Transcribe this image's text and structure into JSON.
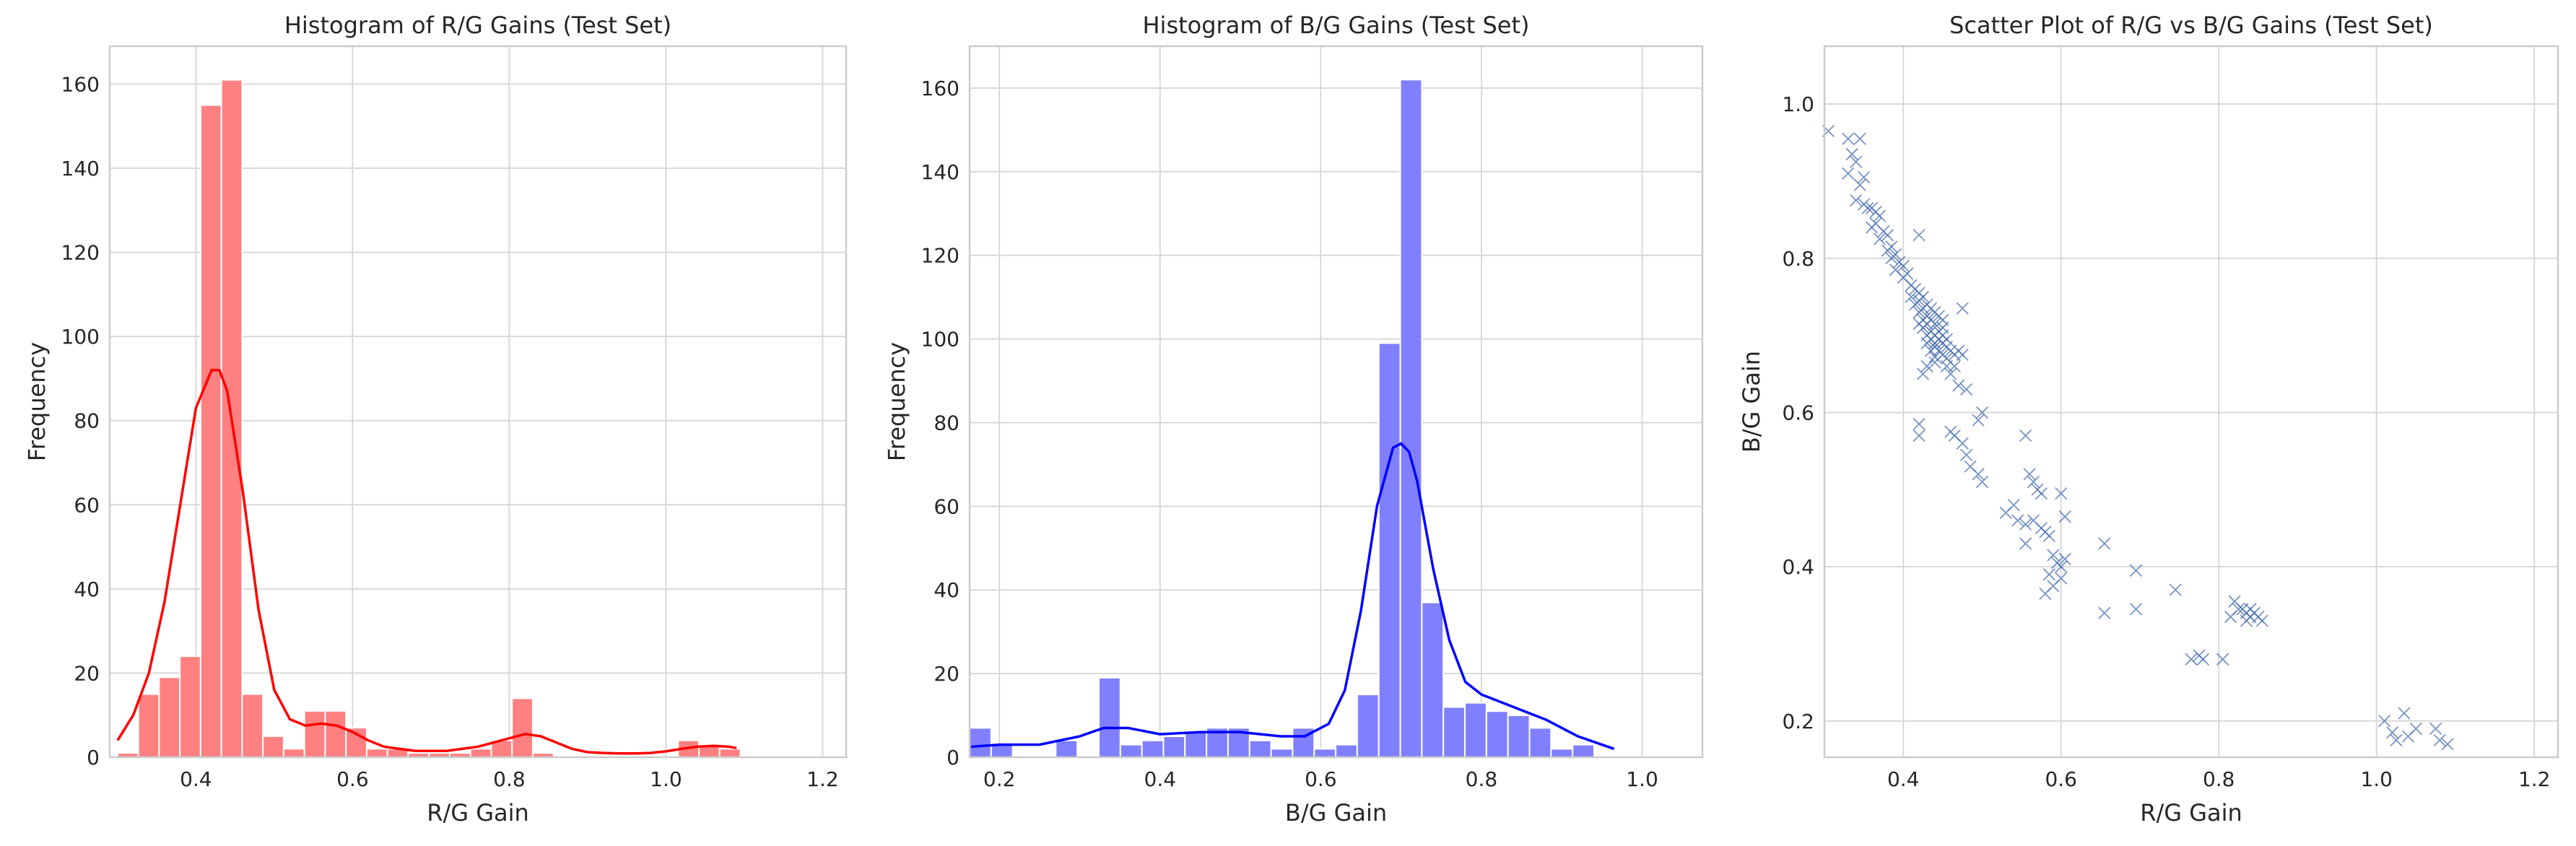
{
  "chart_data": [
    {
      "type": "bar",
      "subtype": "histogram-with-kde",
      "title": "Histogram of R/G Gains (Test Set)",
      "xlabel": "R/G Gain",
      "ylabel": "Frequency",
      "xlim": [
        0.29,
        1.23
      ],
      "ylim": [
        0,
        169
      ],
      "xticks": [
        "0.4",
        "0.6",
        "0.8",
        "1.0",
        "1.2"
      ],
      "yticks": [
        "0",
        "20",
        "40",
        "60",
        "80",
        "100",
        "120",
        "140",
        "160"
      ],
      "color": "#ff0000",
      "bar_color": "#ff8080",
      "grid": true,
      "bin_start": 0.3,
      "bin_width": 0.0265,
      "counts": [
        1,
        15,
        19,
        24,
        155,
        161,
        15,
        5,
        2,
        11,
        11,
        7,
        2,
        2,
        1,
        1,
        1,
        2,
        4,
        14,
        1,
        0,
        0,
        0,
        0,
        0,
        0,
        4,
        3,
        2
      ],
      "kde": {
        "x": [
          0.3,
          0.32,
          0.34,
          0.36,
          0.38,
          0.4,
          0.42,
          0.43,
          0.44,
          0.46,
          0.48,
          0.5,
          0.52,
          0.54,
          0.56,
          0.58,
          0.6,
          0.62,
          0.64,
          0.66,
          0.68,
          0.7,
          0.72,
          0.74,
          0.76,
          0.78,
          0.8,
          0.82,
          0.84,
          0.86,
          0.88,
          0.9,
          0.92,
          0.94,
          0.96,
          0.98,
          1.0,
          1.02,
          1.04,
          1.06,
          1.08,
          1.09
        ],
        "y": [
          4,
          10,
          20,
          37,
          60,
          83,
          92,
          92,
          87,
          63,
          35,
          16,
          9,
          7.5,
          8,
          7.5,
          6,
          4,
          2.5,
          2,
          1.5,
          1.5,
          1.5,
          2,
          2.5,
          3.5,
          4.5,
          5.5,
          5,
          3.5,
          2,
          1.2,
          1,
          0.9,
          0.9,
          1,
          1.4,
          2,
          2.5,
          2.7,
          2.5,
          2.2
        ]
      }
    },
    {
      "type": "bar",
      "subtype": "histogram-with-kde",
      "title": "Histogram of B/G Gains (Test Set)",
      "xlabel": "B/G Gain",
      "ylabel": "Frequency",
      "xlim": [
        0.163,
        1.075
      ],
      "ylim": [
        0,
        170
      ],
      "xticks": [
        "0.2",
        "0.4",
        "0.6",
        "0.8",
        "1.0"
      ],
      "yticks": [
        "0",
        "20",
        "40",
        "60",
        "80",
        "100",
        "120",
        "140",
        "160"
      ],
      "color": "#0000ff",
      "bar_color": "#8080ff",
      "grid": true,
      "bin_start": 0.163,
      "bin_width": 0.0268,
      "counts": [
        7,
        3,
        0,
        0,
        4,
        0,
        19,
        3,
        4,
        5,
        6,
        7,
        7,
        4,
        2,
        7,
        2,
        3,
        15,
        99,
        162,
        37,
        12,
        13,
        11,
        10,
        7,
        2,
        3,
        0
      ],
      "kde": {
        "x": [
          0.165,
          0.2,
          0.25,
          0.3,
          0.33,
          0.36,
          0.4,
          0.45,
          0.5,
          0.55,
          0.58,
          0.61,
          0.63,
          0.65,
          0.67,
          0.69,
          0.7,
          0.71,
          0.72,
          0.74,
          0.76,
          0.78,
          0.8,
          0.84,
          0.88,
          0.92,
          0.965
        ],
        "y": [
          2.5,
          3,
          3,
          5,
          7,
          7,
          5.5,
          6,
          6,
          5,
          5,
          8,
          16,
          35,
          60,
          74,
          75,
          73,
          66,
          45,
          28,
          18,
          15,
          12,
          9,
          5,
          2
        ]
      }
    },
    {
      "type": "scatter",
      "title": "Scatter Plot of R/G vs B/G Gains (Test Set)",
      "xlabel": "R/G Gain",
      "ylabel": "B/G Gain",
      "xlim": [
        0.3,
        1.23
      ],
      "ylim": [
        0.153,
        1.075
      ],
      "xticks": [
        "0.4",
        "0.6",
        "0.8",
        "1.0",
        "1.2"
      ],
      "yticks": [
        "0.2",
        "0.4",
        "0.6",
        "0.8",
        "1.0"
      ],
      "color": "#4c72b0",
      "marker": "x",
      "grid": true,
      "points": [
        [
          0.305,
          0.965
        ],
        [
          0.33,
          0.955
        ],
        [
          0.345,
          0.955
        ],
        [
          0.335,
          0.935
        ],
        [
          0.34,
          0.925
        ],
        [
          0.33,
          0.91
        ],
        [
          0.35,
          0.905
        ],
        [
          0.345,
          0.895
        ],
        [
          0.34,
          0.875
        ],
        [
          0.35,
          0.87
        ],
        [
          0.355,
          0.865
        ],
        [
          0.36,
          0.865
        ],
        [
          0.365,
          0.86
        ],
        [
          0.37,
          0.855
        ],
        [
          0.365,
          0.845
        ],
        [
          0.36,
          0.84
        ],
        [
          0.375,
          0.835
        ],
        [
          0.38,
          0.83
        ],
        [
          0.37,
          0.825
        ],
        [
          0.385,
          0.815
        ],
        [
          0.38,
          0.81
        ],
        [
          0.39,
          0.805
        ],
        [
          0.385,
          0.8
        ],
        [
          0.395,
          0.795
        ],
        [
          0.4,
          0.79
        ],
        [
          0.39,
          0.785
        ],
        [
          0.405,
          0.78
        ],
        [
          0.4,
          0.775
        ],
        [
          0.41,
          0.765
        ],
        [
          0.415,
          0.76
        ],
        [
          0.42,
          0.755
        ],
        [
          0.41,
          0.75
        ],
        [
          0.425,
          0.75
        ],
        [
          0.42,
          0.745
        ],
        [
          0.415,
          0.74
        ],
        [
          0.43,
          0.74
        ],
        [
          0.425,
          0.735
        ],
        [
          0.435,
          0.735
        ],
        [
          0.42,
          0.73
        ],
        [
          0.44,
          0.73
        ],
        [
          0.43,
          0.725
        ],
        [
          0.445,
          0.725
        ],
        [
          0.425,
          0.72
        ],
        [
          0.435,
          0.72
        ],
        [
          0.45,
          0.72
        ],
        [
          0.42,
          0.715
        ],
        [
          0.43,
          0.715
        ],
        [
          0.44,
          0.715
        ],
        [
          0.45,
          0.71
        ],
        [
          0.425,
          0.71
        ],
        [
          0.435,
          0.705
        ],
        [
          0.445,
          0.705
        ],
        [
          0.43,
          0.7
        ],
        [
          0.44,
          0.7
        ],
        [
          0.45,
          0.7
        ],
        [
          0.435,
          0.695
        ],
        [
          0.445,
          0.695
        ],
        [
          0.455,
          0.695
        ],
        [
          0.43,
          0.69
        ],
        [
          0.44,
          0.69
        ],
        [
          0.45,
          0.69
        ],
        [
          0.44,
          0.685
        ],
        [
          0.455,
          0.685
        ],
        [
          0.435,
          0.68
        ],
        [
          0.445,
          0.68
        ],
        [
          0.45,
          0.675
        ],
        [
          0.44,
          0.672
        ],
        [
          0.455,
          0.67
        ],
        [
          0.46,
          0.68
        ],
        [
          0.465,
          0.675
        ],
        [
          0.47,
          0.68
        ],
        [
          0.475,
          0.675
        ],
        [
          0.465,
          0.66
        ],
        [
          0.455,
          0.66
        ],
        [
          0.44,
          0.665
        ],
        [
          0.43,
          0.66
        ],
        [
          0.425,
          0.65
        ],
        [
          0.46,
          0.65
        ],
        [
          0.47,
          0.635
        ],
        [
          0.48,
          0.63
        ],
        [
          0.42,
          0.83
        ],
        [
          0.475,
          0.735
        ],
        [
          0.5,
          0.6
        ],
        [
          0.495,
          0.59
        ],
        [
          0.42,
          0.585
        ],
        [
          0.42,
          0.57
        ],
        [
          0.46,
          0.575
        ],
        [
          0.465,
          0.57
        ],
        [
          0.475,
          0.56
        ],
        [
          0.48,
          0.545
        ],
        [
          0.485,
          0.53
        ],
        [
          0.495,
          0.52
        ],
        [
          0.5,
          0.51
        ],
        [
          0.555,
          0.57
        ],
        [
          0.56,
          0.52
        ],
        [
          0.565,
          0.51
        ],
        [
          0.57,
          0.5
        ],
        [
          0.575,
          0.495
        ],
        [
          0.54,
          0.48
        ],
        [
          0.53,
          0.47
        ],
        [
          0.545,
          0.46
        ],
        [
          0.555,
          0.455
        ],
        [
          0.565,
          0.46
        ],
        [
          0.575,
          0.45
        ],
        [
          0.58,
          0.445
        ],
        [
          0.585,
          0.44
        ],
        [
          0.555,
          0.43
        ],
        [
          0.6,
          0.495
        ],
        [
          0.605,
          0.465
        ],
        [
          0.59,
          0.415
        ],
        [
          0.595,
          0.405
        ],
        [
          0.6,
          0.4
        ],
        [
          0.605,
          0.41
        ],
        [
          0.585,
          0.39
        ],
        [
          0.6,
          0.385
        ],
        [
          0.59,
          0.375
        ],
        [
          0.58,
          0.365
        ],
        [
          0.655,
          0.43
        ],
        [
          0.695,
          0.395
        ],
        [
          0.655,
          0.34
        ],
        [
          0.695,
          0.345
        ],
        [
          0.745,
          0.37
        ],
        [
          0.765,
          0.28
        ],
        [
          0.775,
          0.285
        ],
        [
          0.78,
          0.28
        ],
        [
          0.805,
          0.28
        ],
        [
          0.815,
          0.335
        ],
        [
          0.82,
          0.355
        ],
        [
          0.825,
          0.345
        ],
        [
          0.83,
          0.345
        ],
        [
          0.835,
          0.34
        ],
        [
          0.84,
          0.345
        ],
        [
          0.84,
          0.335
        ],
        [
          0.845,
          0.34
        ],
        [
          0.85,
          0.335
        ],
        [
          0.855,
          0.33
        ],
        [
          0.835,
          0.33
        ],
        [
          1.01,
          0.2
        ],
        [
          1.035,
          0.21
        ],
        [
          1.02,
          0.185
        ],
        [
          1.025,
          0.175
        ],
        [
          1.04,
          0.18
        ],
        [
          1.05,
          0.19
        ],
        [
          1.075,
          0.19
        ],
        [
          1.08,
          0.175
        ],
        [
          1.09,
          0.17
        ]
      ]
    }
  ]
}
